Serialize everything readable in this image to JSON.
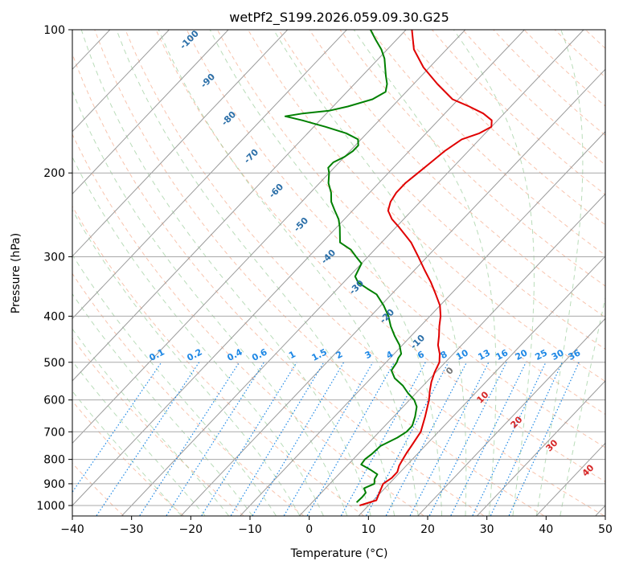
{
  "chart_data": {
    "type": "skew-t log-p",
    "title": "wetPf2_S199.2026.059.09.30.G25",
    "xlabel": "Temperature (°C)",
    "ylabel": "Pressure (hPa)",
    "xlim": [
      -40,
      50
    ],
    "ylim": [
      1050,
      100
    ],
    "x_ticks": [
      -40,
      -30,
      -20,
      -10,
      0,
      10,
      20,
      30,
      40,
      50
    ],
    "y_ticks": [
      100,
      200,
      300,
      400,
      500,
      600,
      700,
      800,
      900,
      1000
    ],
    "grid": true,
    "series": [
      {
        "role": "temperature",
        "color": "#e00000",
        "points": [
          [
            1000,
            8.5
          ],
          [
            975,
            10.5
          ],
          [
            950,
            10.0
          ],
          [
            925,
            9.5
          ],
          [
            900,
            9.0
          ],
          [
            875,
            9.5
          ],
          [
            850,
            9.5
          ],
          [
            825,
            8.8
          ],
          [
            800,
            8.4
          ],
          [
            775,
            8.0
          ],
          [
            750,
            7.7
          ],
          [
            700,
            7.0
          ],
          [
            650,
            5.3
          ],
          [
            600,
            3.3
          ],
          [
            575,
            2.0
          ],
          [
            550,
            0.8
          ],
          [
            525,
            -0.2
          ],
          [
            500,
            -1.0
          ],
          [
            480,
            -2.3
          ],
          [
            460,
            -4.0
          ],
          [
            440,
            -5.3
          ],
          [
            420,
            -6.8
          ],
          [
            400,
            -8.2
          ],
          [
            380,
            -10.0
          ],
          [
            360,
            -12.5
          ],
          [
            340,
            -15.2
          ],
          [
            320,
            -18.3
          ],
          [
            300,
            -21.5
          ],
          [
            280,
            -25.0
          ],
          [
            260,
            -29.5
          ],
          [
            250,
            -32.0
          ],
          [
            240,
            -34.0
          ],
          [
            230,
            -35.0
          ],
          [
            220,
            -35.5
          ],
          [
            210,
            -35.5
          ],
          [
            200,
            -35.0
          ],
          [
            190,
            -34.5
          ],
          [
            180,
            -34.0
          ],
          [
            170,
            -33.0
          ],
          [
            165,
            -31.0
          ],
          [
            160,
            -30.0
          ],
          [
            155,
            -31.0
          ],
          [
            150,
            -33.5
          ],
          [
            145,
            -37.0
          ],
          [
            140,
            -41.0
          ],
          [
            130,
            -46.0
          ],
          [
            120,
            -51.0
          ],
          [
            110,
            -55.5
          ],
          [
            100,
            -59.0
          ]
        ]
      },
      {
        "role": "dewpoint",
        "color": "#008000",
        "points": [
          [
            985,
            7.5
          ],
          [
            960,
            7.6
          ],
          [
            940,
            7.5
          ],
          [
            920,
            6.5
          ],
          [
            900,
            7.5
          ],
          [
            880,
            6.8
          ],
          [
            860,
            6.5
          ],
          [
            840,
            4.5
          ],
          [
            820,
            2.2
          ],
          [
            800,
            2.0
          ],
          [
            780,
            2.3
          ],
          [
            750,
            2.5
          ],
          [
            720,
            4.0
          ],
          [
            700,
            4.6
          ],
          [
            680,
            4.6
          ],
          [
            650,
            3.6
          ],
          [
            620,
            2.3
          ],
          [
            600,
            0.8
          ],
          [
            580,
            -1.4
          ],
          [
            560,
            -3.4
          ],
          [
            540,
            -6.0
          ],
          [
            520,
            -7.8
          ],
          [
            500,
            -8.2
          ],
          [
            490,
            -8.6
          ],
          [
            480,
            -8.8
          ],
          [
            460,
            -10.5
          ],
          [
            440,
            -12.8
          ],
          [
            420,
            -15.0
          ],
          [
            400,
            -17.0
          ],
          [
            380,
            -19.5
          ],
          [
            360,
            -22.5
          ],
          [
            350,
            -25.0
          ],
          [
            340,
            -27.5
          ],
          [
            330,
            -29.0
          ],
          [
            320,
            -29.5
          ],
          [
            310,
            -30.0
          ],
          [
            300,
            -32.0
          ],
          [
            290,
            -34.0
          ],
          [
            280,
            -37.0
          ],
          [
            260,
            -39.5
          ],
          [
            250,
            -41.0
          ],
          [
            240,
            -43.0
          ],
          [
            230,
            -45.0
          ],
          [
            220,
            -46.5
          ],
          [
            210,
            -48.5
          ],
          [
            200,
            -50.0
          ],
          [
            195,
            -51.0
          ],
          [
            190,
            -51.0
          ],
          [
            185,
            -50.0
          ],
          [
            180,
            -49.5
          ],
          [
            175,
            -49.5
          ],
          [
            170,
            -50.5
          ],
          [
            165,
            -53.5
          ],
          [
            160,
            -58.0
          ],
          [
            155,
            -63.0
          ],
          [
            152,
            -66.5
          ],
          [
            150,
            -64.0
          ],
          [
            148,
            -60.0
          ],
          [
            145,
            -57.5
          ],
          [
            140,
            -54.5
          ],
          [
            135,
            -53.5
          ],
          [
            130,
            -54.5
          ],
          [
            125,
            -56.0
          ],
          [
            115,
            -59.0
          ],
          [
            110,
            -61.0
          ],
          [
            105,
            -63.5
          ],
          [
            100,
            -66.0
          ]
        ]
      }
    ],
    "dry_adiabat_labels": [
      "-100",
      "-90",
      "-80",
      "-70",
      "-60",
      "-50",
      "-40",
      "-30",
      "-20",
      "-10",
      "0"
    ],
    "moist_adiabat_labels": [
      "10",
      "20",
      "30",
      "40"
    ],
    "mixing_ratio_labels": [
      "0.1",
      "0.2",
      "0.4",
      "0.6",
      "1",
      "1.5",
      "2",
      "3",
      "4",
      "6",
      "8",
      "10",
      "13",
      "16",
      "20",
      "25",
      "30",
      "36"
    ]
  }
}
